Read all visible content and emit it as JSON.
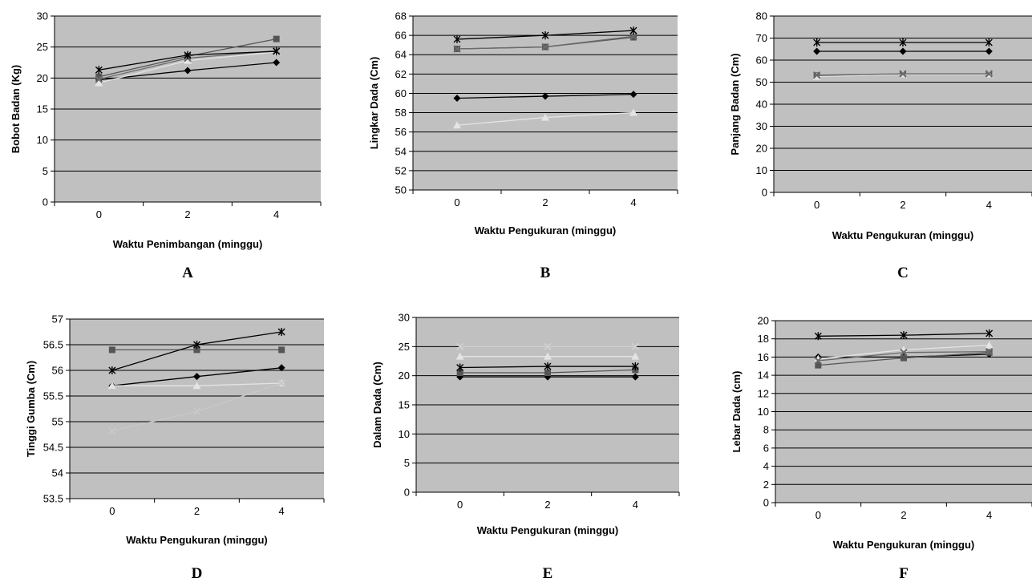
{
  "chart_data": [
    {
      "type": "line",
      "panel_label": "A",
      "title": "",
      "xlabel": "Waktu Penimbangan (minggu)",
      "ylabel": "Bobot Badan (Kg)",
      "x": [
        0,
        2,
        4
      ],
      "xlim": [
        -1,
        5
      ],
      "ylim": [
        0,
        30
      ],
      "yticks": [
        0,
        5,
        10,
        15,
        20,
        25,
        30
      ],
      "grid": true,
      "series": [
        {
          "values": [
            19.7,
            21.2,
            22.5
          ],
          "marker": "diamond",
          "color": "#000000"
        },
        {
          "values": [
            20.2,
            23.5,
            26.3
          ],
          "marker": "square",
          "color": "#555555"
        },
        {
          "values": [
            19.2,
            22.8,
            24.2
          ],
          "marker": "triangle",
          "color": "#e4e4e4"
        },
        {
          "values": [
            19.8,
            23.2,
            24.4
          ],
          "marker": "x",
          "color": "#6a6a6a"
        },
        {
          "values": [
            21.3,
            23.7,
            24.3
          ],
          "marker": "star",
          "color": "#000000"
        }
      ]
    },
    {
      "type": "line",
      "panel_label": "B",
      "title": "",
      "xlabel": "Waktu Pengukuran (minggu)",
      "ylabel": "Lingkar Dada (Cm)",
      "x": [
        0,
        2,
        4
      ],
      "xlim": [
        -1,
        5
      ],
      "ylim": [
        50,
        68
      ],
      "yticks": [
        50,
        52,
        54,
        56,
        58,
        60,
        62,
        64,
        66,
        68
      ],
      "grid": true,
      "series": [
        {
          "values": [
            59.5,
            59.7,
            59.9
          ],
          "marker": "diamond",
          "color": "#000000"
        },
        {
          "values": [
            64.6,
            64.8,
            65.8
          ],
          "marker": "square",
          "color": "#555555"
        },
        {
          "values": [
            56.7,
            57.5,
            58.0
          ],
          "marker": "triangle",
          "color": "#e4e4e4"
        },
        {
          "values": [
            64.6,
            64.8,
            65.9
          ],
          "marker": "x",
          "color": "#6a6a6a"
        },
        {
          "values": [
            65.6,
            66.0,
            66.5
          ],
          "marker": "star",
          "color": "#000000"
        }
      ]
    },
    {
      "type": "line",
      "panel_label": "C",
      "title": "",
      "xlabel": "Waktu Pengukuran (minggu)",
      "ylabel": "Panjang Badan (Cm)",
      "x": [
        0,
        2,
        4
      ],
      "xlim": [
        -1,
        5
      ],
      "ylim": [
        0,
        80
      ],
      "yticks": [
        0,
        10,
        20,
        30,
        40,
        50,
        60,
        70,
        80
      ],
      "grid": true,
      "series": [
        {
          "values": [
            64,
            64,
            64
          ],
          "marker": "diamond",
          "color": "#000000"
        },
        {
          "values": [
            53,
            53.5,
            53.5
          ],
          "marker": "square",
          "color": "#555555"
        },
        {
          "values": [
            52.5,
            53.5,
            53.5
          ],
          "marker": "triangle",
          "color": "#e4e4e4"
        },
        {
          "values": [
            53.2,
            53.8,
            53.8
          ],
          "marker": "x",
          "color": "#6a6a6a"
        },
        {
          "values": [
            68,
            68,
            68
          ],
          "marker": "star",
          "color": "#000000"
        }
      ]
    },
    {
      "type": "line",
      "panel_label": "D",
      "title": "",
      "xlabel": "Waktu Pengukuran (minggu)",
      "ylabel": "Tinggi Gumba (Cm)",
      "x": [
        0,
        2,
        4
      ],
      "xlim": [
        -1,
        5
      ],
      "ylim": [
        53.5,
        57
      ],
      "yticks": [
        53.5,
        54,
        54.5,
        55,
        55.5,
        56,
        56.5,
        57
      ],
      "grid": true,
      "series": [
        {
          "values": [
            55.7,
            55.88,
            56.05
          ],
          "marker": "diamond",
          "color": "#000000"
        },
        {
          "values": [
            56.4,
            56.4,
            56.4
          ],
          "marker": "square",
          "color": "#555555"
        },
        {
          "values": [
            55.7,
            55.7,
            55.75
          ],
          "marker": "triangle",
          "color": "#e4e4e4"
        },
        {
          "values": [
            54.82,
            55.2,
            55.75
          ],
          "marker": "x",
          "color": "#c8c8c8"
        },
        {
          "values": [
            56.0,
            56.5,
            56.75
          ],
          "marker": "star",
          "color": "#000000"
        }
      ]
    },
    {
      "type": "line",
      "panel_label": "E",
      "title": "",
      "xlabel": "Waktu Pengukuran (minggu)",
      "ylabel": "Dalam Dada (Cm)",
      "x": [
        0,
        2,
        4
      ],
      "xlim": [
        -1,
        5
      ],
      "ylim": [
        0,
        30
      ],
      "yticks": [
        0,
        5,
        10,
        15,
        20,
        25,
        30
      ],
      "grid": true,
      "series": [
        {
          "values": [
            19.8,
            19.8,
            19.8
          ],
          "marker": "diamond",
          "color": "#000000"
        },
        {
          "values": [
            20.5,
            20.5,
            21.0
          ],
          "marker": "square",
          "color": "#555555"
        },
        {
          "values": [
            23.3,
            23.3,
            23.3
          ],
          "marker": "triangle",
          "color": "#e4e4e4"
        },
        {
          "values": [
            25.0,
            25.0,
            25.0
          ],
          "marker": "x",
          "color": "#d0d0d0"
        },
        {
          "values": [
            21.4,
            21.6,
            21.6
          ],
          "marker": "star",
          "color": "#000000"
        }
      ]
    },
    {
      "type": "line",
      "panel_label": "F",
      "title": "",
      "xlabel": "Waktu Pengukuran (minggu)",
      "ylabel": "Lebar Dada (cm)",
      "x": [
        0,
        2,
        4
      ],
      "xlim": [
        -1,
        5
      ],
      "ylim": [
        0,
        20
      ],
      "yticks": [
        0,
        2,
        4,
        6,
        8,
        10,
        12,
        14,
        16,
        18,
        20
      ],
      "grid": true,
      "series": [
        {
          "values": [
            16.0,
            16.0,
            16.3
          ],
          "marker": "diamond",
          "color": "#000000"
        },
        {
          "values": [
            15.1,
            15.9,
            16.5
          ],
          "marker": "square",
          "color": "#555555"
        },
        {
          "values": [
            15.8,
            16.8,
            17.3
          ],
          "marker": "triangle",
          "color": "#e4e4e4"
        },
        {
          "values": [
            15.6,
            16.5,
            16.6
          ],
          "marker": "x",
          "color": "#6a6a6a"
        },
        {
          "values": [
            18.3,
            18.4,
            18.6
          ],
          "marker": "star",
          "color": "#000000"
        }
      ]
    }
  ]
}
